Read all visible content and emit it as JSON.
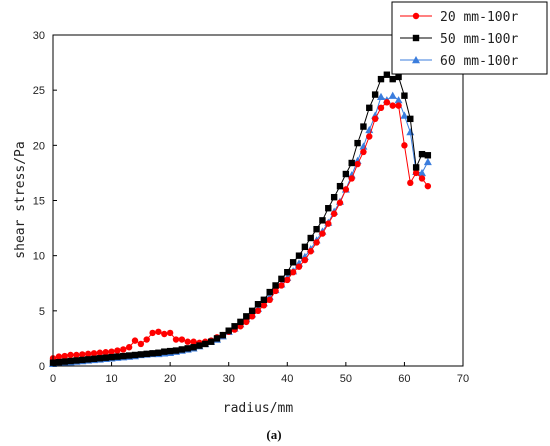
{
  "caption": "(a)",
  "chart_data": {
    "type": "scatter",
    "title": "",
    "xlabel": "radius/mm",
    "ylabel": "shear stress/Pa",
    "xlim": [
      0,
      70
    ],
    "ylim": [
      0,
      30
    ],
    "xticks": [
      0,
      10,
      20,
      30,
      40,
      50,
      60,
      70
    ],
    "yticks": [
      0,
      5,
      10,
      15,
      20,
      25,
      30
    ],
    "legend_position": "top-right",
    "grid": false,
    "series": [
      {
        "name": "20 mm-100r",
        "color": "#ff0000",
        "marker": "circle",
        "x": [
          0,
          1,
          2,
          3,
          4,
          5,
          6,
          7,
          8,
          9,
          10,
          11,
          12,
          13,
          14,
          15,
          16,
          17,
          18,
          19,
          20,
          21,
          22,
          23,
          24,
          25,
          26,
          27,
          28,
          29,
          30,
          31,
          32,
          33,
          34,
          35,
          36,
          37,
          38,
          39,
          40,
          41,
          42,
          43,
          44,
          45,
          46,
          47,
          48,
          49,
          50,
          51,
          52,
          53,
          54,
          55,
          56,
          57,
          58,
          59,
          60,
          61,
          62,
          63,
          64
        ],
        "y": [
          0.7,
          0.85,
          0.9,
          1.0,
          1.0,
          1.05,
          1.1,
          1.15,
          1.2,
          1.25,
          1.3,
          1.4,
          1.5,
          1.7,
          2.3,
          2.0,
          2.4,
          3.0,
          3.1,
          2.9,
          3.0,
          2.4,
          2.4,
          2.2,
          2.2,
          2.1,
          2.2,
          2.3,
          2.6,
          2.8,
          3.1,
          3.3,
          3.6,
          4.0,
          4.5,
          5.0,
          5.5,
          6.0,
          6.8,
          7.3,
          7.8,
          8.5,
          9.0,
          9.6,
          10.4,
          11.2,
          12.0,
          12.9,
          13.8,
          14.8,
          16.0,
          17.0,
          18.3,
          19.4,
          20.8,
          22.4,
          23.4,
          23.9,
          23.6,
          23.6,
          20.0,
          16.6,
          17.5,
          17.0,
          16.3
        ]
      },
      {
        "name": "50 mm-100r",
        "color": "#000000",
        "marker": "square",
        "x": [
          0,
          1,
          2,
          3,
          4,
          5,
          6,
          7,
          8,
          9,
          10,
          11,
          12,
          13,
          14,
          15,
          16,
          17,
          18,
          19,
          20,
          21,
          22,
          23,
          24,
          25,
          26,
          27,
          28,
          29,
          30,
          31,
          32,
          33,
          34,
          35,
          36,
          37,
          38,
          39,
          40,
          41,
          42,
          43,
          44,
          45,
          46,
          47,
          48,
          49,
          50,
          51,
          52,
          53,
          54,
          55,
          56,
          57,
          58,
          59,
          60,
          61,
          62,
          63,
          64
        ],
        "y": [
          0.3,
          0.35,
          0.4,
          0.45,
          0.5,
          0.55,
          0.6,
          0.65,
          0.7,
          0.75,
          0.8,
          0.85,
          0.9,
          0.95,
          1.0,
          1.05,
          1.1,
          1.15,
          1.2,
          1.3,
          1.35,
          1.4,
          1.5,
          1.6,
          1.7,
          1.85,
          2.0,
          2.2,
          2.5,
          2.8,
          3.2,
          3.6,
          4.0,
          4.5,
          5.0,
          5.6,
          6.0,
          6.7,
          7.3,
          7.9,
          8.5,
          9.4,
          10.0,
          10.8,
          11.6,
          12.4,
          13.2,
          14.3,
          15.3,
          16.3,
          17.4,
          18.4,
          20.2,
          21.7,
          23.4,
          24.6,
          26.0,
          26.4,
          26.0,
          26.2,
          24.5,
          22.4,
          18.0,
          19.2,
          19.1
        ]
      },
      {
        "name": "60 mm-100r",
        "color": "#3b7ddd",
        "marker": "triangle",
        "x": [
          0,
          1,
          2,
          3,
          4,
          5,
          6,
          7,
          8,
          9,
          10,
          11,
          12,
          13,
          14,
          15,
          16,
          17,
          18,
          19,
          20,
          21,
          22,
          23,
          24,
          25,
          26,
          27,
          28,
          29,
          30,
          31,
          32,
          33,
          34,
          35,
          36,
          37,
          38,
          39,
          40,
          41,
          42,
          43,
          44,
          45,
          46,
          47,
          48,
          49,
          50,
          51,
          52,
          53,
          54,
          55,
          56,
          57,
          58,
          59,
          60,
          61,
          62,
          63,
          64
        ],
        "y": [
          0.2,
          0.25,
          0.3,
          0.35,
          0.4,
          0.45,
          0.5,
          0.55,
          0.6,
          0.65,
          0.7,
          0.75,
          0.8,
          0.85,
          0.9,
          1.0,
          1.05,
          1.1,
          1.1,
          1.15,
          1.2,
          1.3,
          1.4,
          1.5,
          1.6,
          1.8,
          2.0,
          2.2,
          2.4,
          2.7,
          3.1,
          3.4,
          3.8,
          4.3,
          4.7,
          5.2,
          5.7,
          6.3,
          6.9,
          7.4,
          8.0,
          8.6,
          9.3,
          9.9,
          10.6,
          11.4,
          12.2,
          13.0,
          14.0,
          14.9,
          16.0,
          17.3,
          18.6,
          19.9,
          21.4,
          22.7,
          24.4,
          24.1,
          24.5,
          24.1,
          22.7,
          21.2,
          17.6,
          17.5,
          18.5
        ]
      }
    ]
  }
}
